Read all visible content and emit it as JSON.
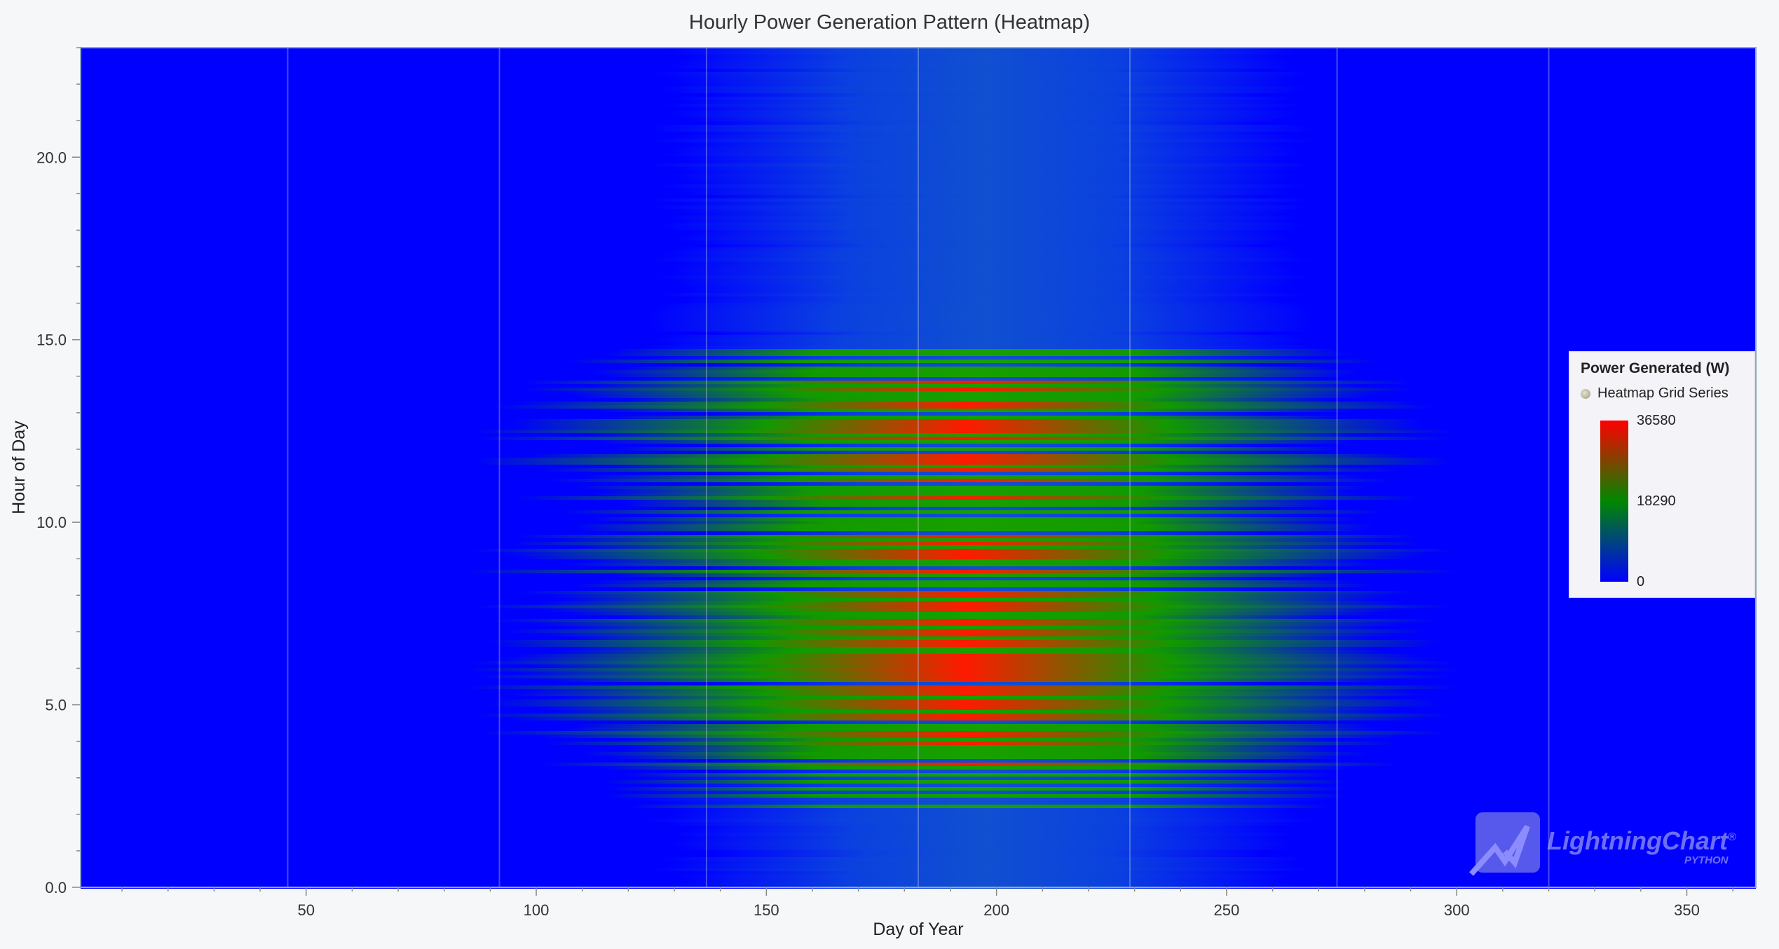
{
  "chart_data": {
    "type": "heatmap",
    "title": "Hourly Power Generation Pattern (Heatmap)",
    "xlabel": "Day of Year",
    "ylabel": "Hour of Day",
    "xlim": [
      1,
      365
    ],
    "ylim": [
      0,
      23
    ],
    "x_ticks": [
      "50",
      "100",
      "150",
      "200",
      "250",
      "300",
      "350"
    ],
    "y_ticks": [
      "0.0",
      "5.0",
      "10.0",
      "15.0",
      "20.0"
    ],
    "legend": {
      "title": "Power Generated (W)",
      "series_name": "Heatmap Grid Series",
      "max_label": "36580",
      "mid_label": "18290",
      "min_label": "0",
      "min": 0,
      "max": 36580
    },
    "colormap": [
      "#0000ff",
      "#008800",
      "#ff0000"
    ],
    "peak_day": 205,
    "active_day_range": [
      85,
      300
    ],
    "peak_hours": [
      5.5,
      8.5,
      12
    ],
    "grid": true
  },
  "watermark": {
    "brand": "LightningChart",
    "registered": "®",
    "sub": "PYTHON"
  }
}
